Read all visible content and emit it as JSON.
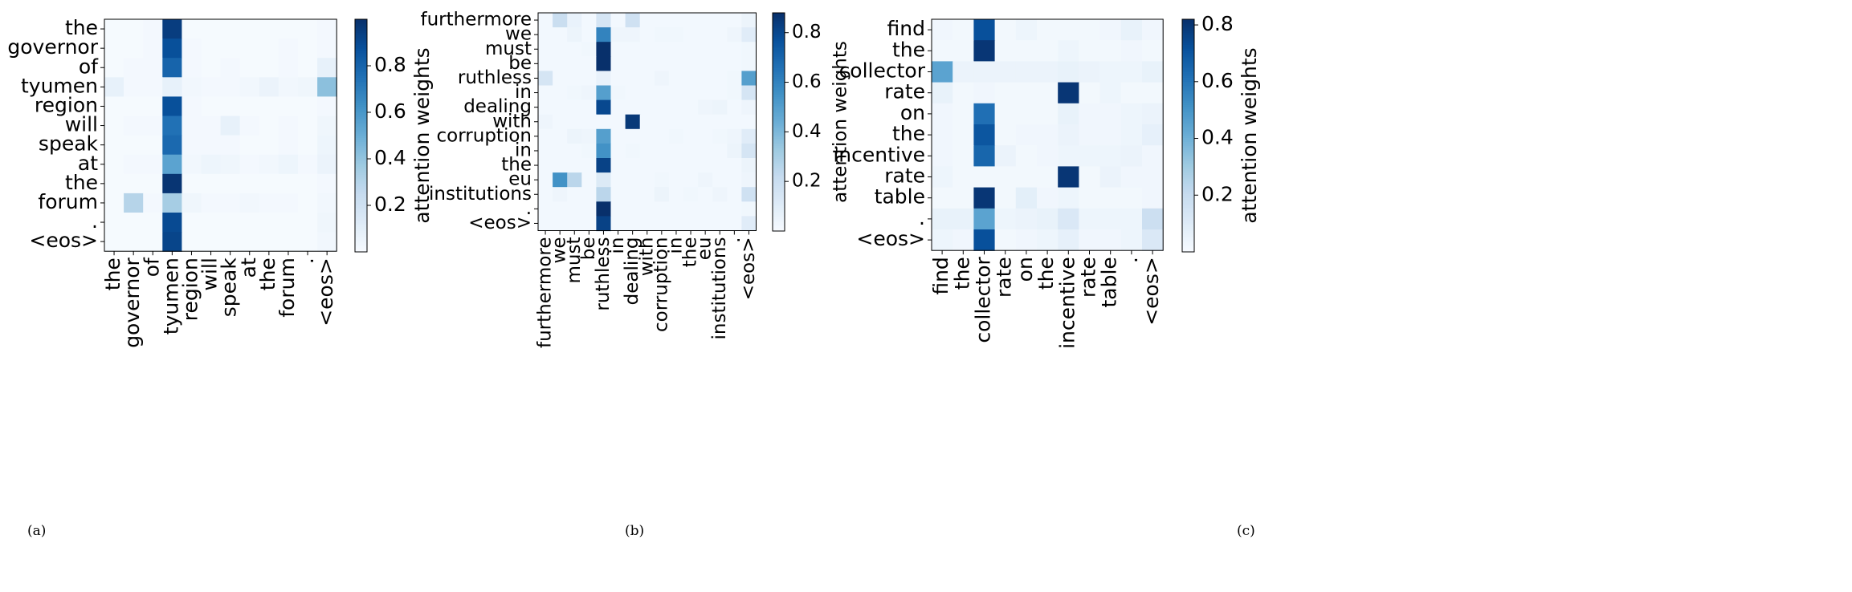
{
  "chart_data": [
    {
      "type": "heatmap",
      "panel_label": "(a)",
      "rows": [
        "the",
        "governor",
        "of",
        "tyumen",
        "region",
        "will",
        "speak",
        "at",
        "the",
        "forum",
        ".",
        "<eos>"
      ],
      "columns": [
        "the",
        "governor",
        "of",
        "tyumen",
        "region",
        "will",
        "speak",
        "at",
        "the",
        "forum",
        ".",
        "<eos>"
      ],
      "values": [
        [
          0.01,
          0.01,
          0.02,
          0.95,
          0.01,
          0.01,
          0.01,
          0.01,
          0.01,
          0.01,
          0.01,
          0.02
        ],
        [
          0.01,
          0.01,
          0.02,
          0.88,
          0.02,
          0.01,
          0.01,
          0.01,
          0.01,
          0.02,
          0.01,
          0.02
        ],
        [
          0.01,
          0.02,
          0.02,
          0.8,
          0.02,
          0.01,
          0.02,
          0.01,
          0.01,
          0.02,
          0.01,
          0.08
        ],
        [
          0.08,
          0.02,
          0.02,
          0.08,
          0.03,
          0.02,
          0.02,
          0.03,
          0.06,
          0.03,
          0.04,
          0.42
        ],
        [
          0.01,
          0.01,
          0.01,
          0.88,
          0.02,
          0.01,
          0.01,
          0.01,
          0.01,
          0.01,
          0.01,
          0.02
        ],
        [
          0.01,
          0.02,
          0.02,
          0.75,
          0.02,
          0.02,
          0.08,
          0.02,
          0.01,
          0.02,
          0.01,
          0.04
        ],
        [
          0.01,
          0.01,
          0.01,
          0.78,
          0.02,
          0.02,
          0.02,
          0.01,
          0.01,
          0.02,
          0.01,
          0.05
        ],
        [
          0.01,
          0.02,
          0.02,
          0.55,
          0.03,
          0.05,
          0.04,
          0.02,
          0.03,
          0.05,
          0.02,
          0.06
        ],
        [
          0.01,
          0.01,
          0.01,
          0.98,
          0.01,
          0.01,
          0.01,
          0.01,
          0.01,
          0.01,
          0.01,
          0.02
        ],
        [
          0.01,
          0.3,
          0.02,
          0.35,
          0.04,
          0.02,
          0.02,
          0.03,
          0.02,
          0.02,
          0.01,
          0.03
        ],
        [
          0.01,
          0.01,
          0.01,
          0.9,
          0.01,
          0.01,
          0.01,
          0.01,
          0.01,
          0.01,
          0.01,
          0.04
        ],
        [
          0.01,
          0.01,
          0.01,
          0.92,
          0.01,
          0.01,
          0.01,
          0.01,
          0.01,
          0.01,
          0.01,
          0.03
        ]
      ],
      "colorbar": {
        "label": "attention weights",
        "min": 0.0,
        "max": 1.0,
        "ticks": [
          0.2,
          0.4,
          0.6,
          0.8
        ],
        "tick_labels": [
          "0.2",
          "0.4",
          "0.6",
          "0.8"
        ]
      }
    },
    {
      "type": "heatmap",
      "panel_label": "(b)",
      "rows": [
        "furthermore",
        "we",
        "must",
        "be",
        "ruthless",
        "in",
        "dealing",
        "with",
        "corruption",
        "in",
        "the",
        "eu",
        "institutions",
        ".",
        "<eos>"
      ],
      "columns": [
        "furthermore",
        "we",
        "must",
        "be",
        "ruthless",
        "in",
        "dealing",
        "with",
        "corruption",
        "in",
        "the",
        "eu",
        "institutions",
        ".",
        "<eos>"
      ],
      "values": [
        [
          0.02,
          0.2,
          0.06,
          0.02,
          0.15,
          0.02,
          0.18,
          0.02,
          0.02,
          0.02,
          0.02,
          0.02,
          0.02,
          0.02,
          0.05
        ],
        [
          0.02,
          0.02,
          0.05,
          0.02,
          0.6,
          0.04,
          0.04,
          0.02,
          0.03,
          0.03,
          0.02,
          0.02,
          0.02,
          0.04,
          0.1
        ],
        [
          0.02,
          0.02,
          0.02,
          0.03,
          0.95,
          0.02,
          0.02,
          0.02,
          0.02,
          0.02,
          0.02,
          0.02,
          0.02,
          0.02,
          0.03
        ],
        [
          0.02,
          0.02,
          0.02,
          0.02,
          0.97,
          0.02,
          0.02,
          0.02,
          0.02,
          0.02,
          0.02,
          0.02,
          0.02,
          0.02,
          0.03
        ],
        [
          0.15,
          0.02,
          0.02,
          0.02,
          0.06,
          0.02,
          0.02,
          0.02,
          0.04,
          0.02,
          0.02,
          0.02,
          0.02,
          0.03,
          0.5
        ],
        [
          0.02,
          0.02,
          0.03,
          0.04,
          0.5,
          0.03,
          0.02,
          0.02,
          0.02,
          0.02,
          0.02,
          0.02,
          0.02,
          0.03,
          0.15
        ],
        [
          0.02,
          0.02,
          0.02,
          0.02,
          0.8,
          0.02,
          0.02,
          0.02,
          0.02,
          0.02,
          0.02,
          0.04,
          0.05,
          0.02,
          0.04
        ],
        [
          0.04,
          0.02,
          0.02,
          0.02,
          0.02,
          0.02,
          0.85,
          0.02,
          0.02,
          0.02,
          0.02,
          0.02,
          0.02,
          0.02,
          0.02
        ],
        [
          0.02,
          0.02,
          0.05,
          0.04,
          0.5,
          0.02,
          0.02,
          0.02,
          0.02,
          0.03,
          0.02,
          0.02,
          0.03,
          0.04,
          0.1
        ],
        [
          0.02,
          0.02,
          0.02,
          0.03,
          0.55,
          0.02,
          0.03,
          0.02,
          0.02,
          0.02,
          0.02,
          0.02,
          0.02,
          0.05,
          0.15
        ],
        [
          0.02,
          0.02,
          0.02,
          0.02,
          0.82,
          0.02,
          0.02,
          0.02,
          0.02,
          0.02,
          0.02,
          0.02,
          0.02,
          0.02,
          0.05
        ],
        [
          0.02,
          0.55,
          0.25,
          0.02,
          0.12,
          0.02,
          0.02,
          0.02,
          0.03,
          0.02,
          0.02,
          0.04,
          0.02,
          0.02,
          0.04
        ],
        [
          0.02,
          0.04,
          0.02,
          0.02,
          0.25,
          0.02,
          0.02,
          0.02,
          0.05,
          0.02,
          0.03,
          0.02,
          0.04,
          0.02,
          0.18
        ],
        [
          0.02,
          0.02,
          0.02,
          0.02,
          0.95,
          0.02,
          0.02,
          0.02,
          0.02,
          0.02,
          0.02,
          0.02,
          0.02,
          0.02,
          0.03
        ],
        [
          0.02,
          0.02,
          0.02,
          0.02,
          0.82,
          0.02,
          0.02,
          0.02,
          0.02,
          0.02,
          0.02,
          0.02,
          0.02,
          0.02,
          0.1
        ]
      ],
      "colorbar": {
        "label": "attention weights",
        "min": 0.0,
        "max": 0.88,
        "ticks": [
          0.2,
          0.4,
          0.6,
          0.8
        ],
        "tick_labels": [
          "0.2",
          "0.4",
          "0.6",
          "0.8"
        ]
      }
    },
    {
      "type": "heatmap",
      "panel_label": "(c)",
      "rows": [
        "find",
        "the",
        "collector",
        "rate",
        "on",
        "the",
        "incentive",
        "rate",
        "table",
        ".",
        "<eos>"
      ],
      "columns": [
        "find",
        "the",
        "collector",
        "rate",
        "on",
        "the",
        "incentive",
        "rate",
        "table",
        ".",
        "<eos>"
      ],
      "values": [
        [
          0.03,
          0.02,
          0.72,
          0.02,
          0.04,
          0.02,
          0.02,
          0.02,
          0.03,
          0.06,
          0.03
        ],
        [
          0.02,
          0.02,
          0.8,
          0.02,
          0.02,
          0.02,
          0.04,
          0.02,
          0.02,
          0.03,
          0.02
        ],
        [
          0.45,
          0.05,
          0.05,
          0.05,
          0.05,
          0.05,
          0.06,
          0.05,
          0.04,
          0.04,
          0.06
        ],
        [
          0.06,
          0.02,
          0.03,
          0.02,
          0.02,
          0.02,
          0.8,
          0.02,
          0.04,
          0.02,
          0.02
        ],
        [
          0.03,
          0.02,
          0.62,
          0.02,
          0.02,
          0.02,
          0.06,
          0.03,
          0.03,
          0.04,
          0.05
        ],
        [
          0.03,
          0.02,
          0.7,
          0.02,
          0.03,
          0.03,
          0.05,
          0.03,
          0.03,
          0.04,
          0.07
        ],
        [
          0.03,
          0.02,
          0.65,
          0.05,
          0.02,
          0.03,
          0.04,
          0.04,
          0.04,
          0.05,
          0.03
        ],
        [
          0.04,
          0.02,
          0.02,
          0.02,
          0.02,
          0.02,
          0.8,
          0.02,
          0.05,
          0.03,
          0.03
        ],
        [
          0.02,
          0.02,
          0.8,
          0.02,
          0.08,
          0.03,
          0.04,
          0.02,
          0.02,
          0.02,
          0.03
        ],
        [
          0.06,
          0.06,
          0.45,
          0.04,
          0.05,
          0.06,
          0.12,
          0.04,
          0.04,
          0.04,
          0.18
        ],
        [
          0.04,
          0.03,
          0.72,
          0.02,
          0.03,
          0.04,
          0.07,
          0.03,
          0.03,
          0.04,
          0.12
        ]
      ],
      "colorbar": {
        "label": "attention weights",
        "min": 0.0,
        "max": 0.82,
        "ticks": [
          0.2,
          0.4,
          0.6,
          0.8
        ],
        "tick_labels": [
          "0.2",
          "0.4",
          "0.6",
          "0.8"
        ]
      }
    }
  ]
}
